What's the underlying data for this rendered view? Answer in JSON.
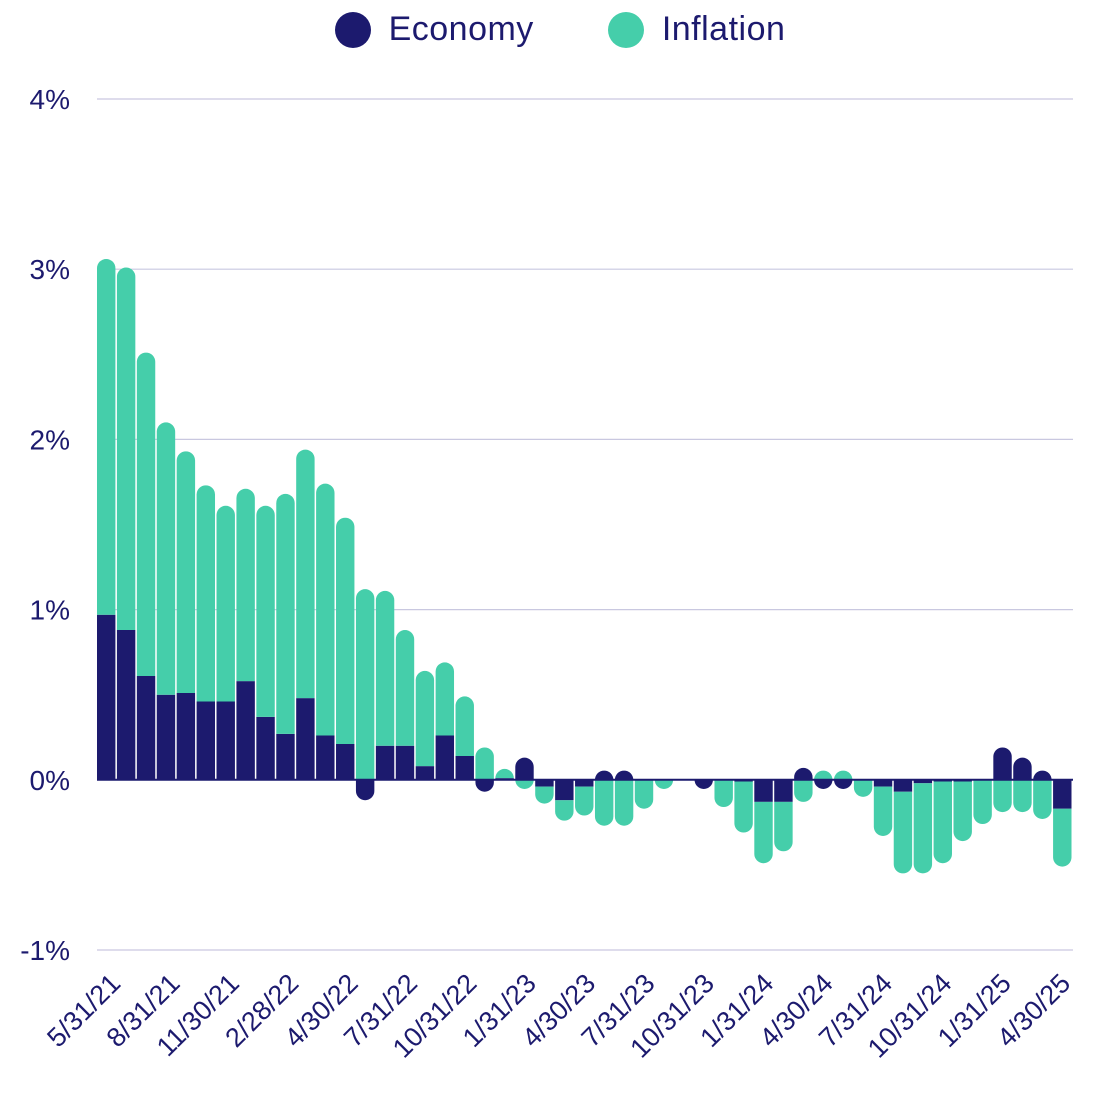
{
  "chart_data": {
    "type": "bar",
    "stacked": true,
    "ylim": [
      -1,
      4
    ],
    "yticks": [
      -1,
      0,
      1,
      2,
      3,
      4
    ],
    "ytick_labels": [
      "-1%",
      "0%",
      "1%",
      "2%",
      "3%",
      "4%"
    ],
    "grid": true,
    "legend_position": "top-center",
    "xtick_labels": [
      "5/31/21",
      "8/31/21",
      "11/30/21",
      "2/28/22",
      "4/30/22",
      "7/31/22",
      "10/31/22",
      "1/31/23",
      "4/30/23",
      "7/31/23",
      "10/31/23",
      "1/31/24",
      "4/30/24",
      "7/31/24",
      "10/31/24",
      "1/31/25",
      "4/30/25"
    ],
    "series": [
      {
        "name": "Economy",
        "color": "#1c1a6e",
        "values": [
          0.97,
          0.88,
          0.61,
          0.5,
          0.51,
          0.46,
          0.46,
          0.58,
          0.37,
          0.27,
          0.48,
          0.26,
          0.21,
          -0.12,
          0.2,
          0.2,
          0.08,
          0.26,
          0.14,
          -0.07,
          0.01,
          0.13,
          -0.04,
          -0.12,
          -0.04,
          0.05,
          0.03,
          0.0,
          0.0,
          0.0,
          -0.04,
          0.0,
          -0.01,
          -0.13,
          -0.13,
          0.07,
          -0.01,
          -0.03,
          0.0,
          -0.04,
          -0.07,
          -0.02,
          -0.01,
          -0.01,
          0.0,
          0.19,
          0.13,
          0.01,
          -0.17
        ]
      },
      {
        "name": "Inflation",
        "color": "#45ceaa",
        "values": [
          2.09,
          2.13,
          1.9,
          1.6,
          1.42,
          1.27,
          1.15,
          1.13,
          1.24,
          1.41,
          1.46,
          1.48,
          1.33,
          1.12,
          0.91,
          0.68,
          0.56,
          0.43,
          0.35,
          0.19,
          0.04,
          -0.05,
          -0.1,
          -0.12,
          -0.17,
          -0.27,
          -0.27,
          -0.17,
          -0.03,
          0.0,
          0.0,
          -0.16,
          -0.3,
          -0.36,
          -0.29,
          -0.13,
          0.02,
          0.02,
          -0.1,
          -0.29,
          -0.48,
          -0.53,
          -0.48,
          -0.35,
          -0.26,
          -0.19,
          -0.19,
          -0.23,
          -0.34
        ]
      }
    ]
  }
}
